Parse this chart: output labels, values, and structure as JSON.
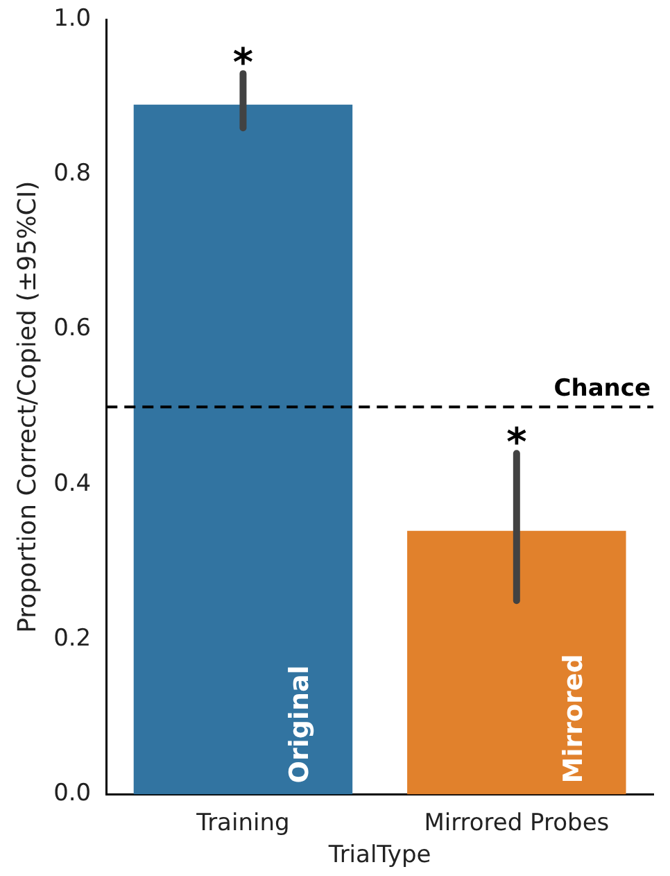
{
  "chart_data": {
    "type": "bar",
    "xlabel": "TrialType",
    "ylabel": "Proportion Correct/Copied (±95%CI)",
    "categories": [
      "Training",
      "Mirrored Probes"
    ],
    "values": [
      0.89,
      0.34
    ],
    "colors": [
      "#3274a1",
      "#e1812c"
    ],
    "errors": [
      [
        0.86,
        0.93
      ],
      [
        0.25,
        0.44
      ]
    ],
    "ylim": [
      0,
      1
    ],
    "yticks": [
      {
        "value": 0,
        "label": "0.0"
      },
      {
        "value": 0.2,
        "label": "0.2"
      },
      {
        "value": 0.4,
        "label": "0.4"
      },
      {
        "value": 0.6,
        "label": "0.6"
      },
      {
        "value": 0.8,
        "label": "0.8"
      },
      {
        "value": 1,
        "label": "1.0"
      }
    ],
    "ref_lines": [
      {
        "axis": "y",
        "value": 0.5,
        "label": "Chance",
        "color": "#000000",
        "line_style": "dashed"
      }
    ],
    "annotations": [
      "*",
      "*",
      "Original",
      "Mirrored"
    ],
    "grid": false,
    "legend": false
  }
}
